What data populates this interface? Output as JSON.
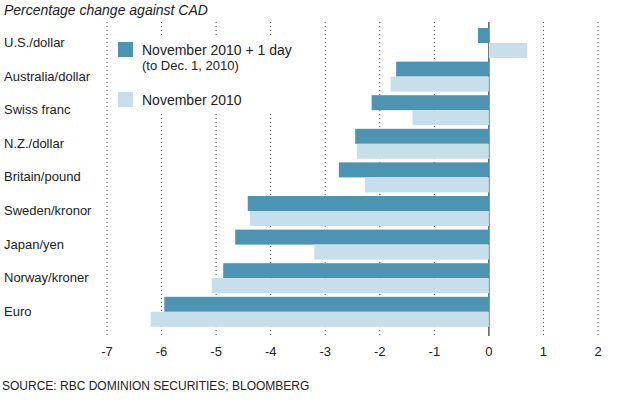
{
  "chart_data": {
    "type": "bar",
    "orientation": "horizontal",
    "title": "Percentage change against CAD",
    "source": "SOURCE: RBC DOMINION SECURITIES; BLOOMBERG",
    "categories": [
      "U.S./dollar",
      "Australia/dollar",
      "Swiss franc",
      "N.Z./dollar",
      "Britain/pound",
      "Sweden/kronor",
      "Japan/yen",
      "Norway/kroner",
      "Euro"
    ],
    "series": [
      {
        "name": "November 2010 + 1 day (to Dec. 1, 2010)",
        "color": "#4d93b2",
        "values": [
          -0.2,
          -1.7,
          -2.15,
          -2.45,
          -2.75,
          -4.42,
          -4.65,
          -4.87,
          -5.95
        ]
      },
      {
        "name": "November 2010",
        "color": "#c6dfea",
        "values": [
          0.7,
          -1.8,
          -1.4,
          -2.42,
          -2.27,
          -4.38,
          -3.2,
          -5.08,
          -6.2
        ]
      }
    ],
    "xlim": [
      -7,
      2
    ],
    "xticks": [
      -7,
      -6,
      -5,
      -4,
      -3,
      -2,
      -1,
      0,
      1,
      2
    ],
    "grid": true,
    "legend": "upper left"
  }
}
